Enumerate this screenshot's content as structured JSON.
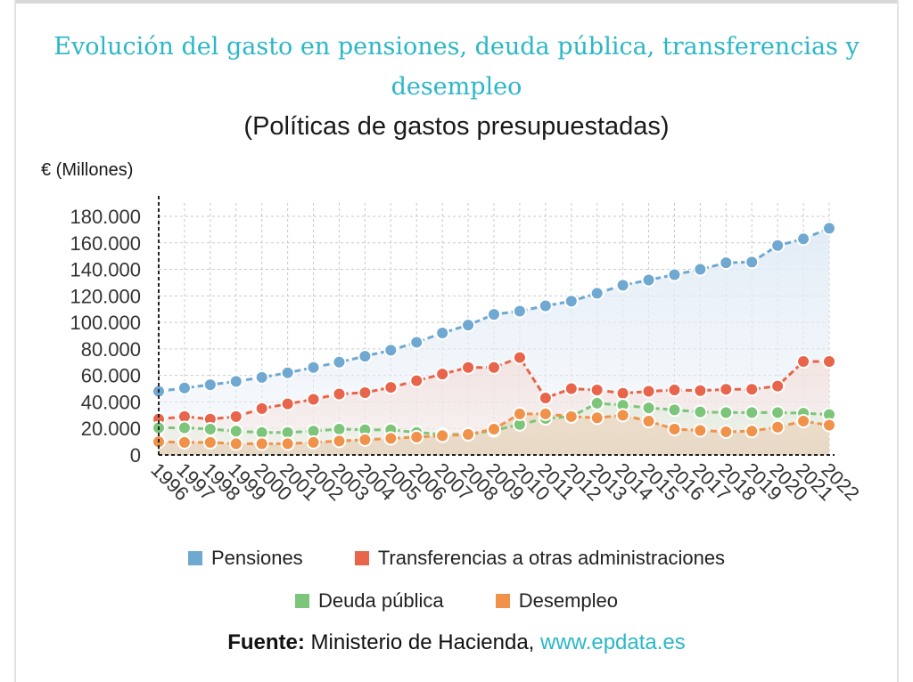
{
  "title": "Evolución del gasto en pensiones, deuda pública, transferencias y desempleo",
  "subtitle": "(Políticas de gastos presupuestadas)",
  "source": {
    "label": "Fuente:",
    "text": " Ministerio de Hacienda, ",
    "link": "www.epdata.es"
  },
  "chart_data": {
    "type": "line",
    "title": "Evolución del gasto en pensiones, deuda pública, transferencias y desempleo",
    "subtitle": "(Políticas de gastos presupuestadas)",
    "ylabel": "€ (Millones)",
    "xlabel": "",
    "ylim": [
      0,
      180000
    ],
    "yticks": [
      0,
      20000,
      40000,
      60000,
      80000,
      100000,
      120000,
      140000,
      160000,
      180000
    ],
    "ytick_labels": [
      "0",
      "20.000",
      "40.000",
      "60.000",
      "80.000",
      "100.000",
      "120.000",
      "140.000",
      "160.000",
      "180.000"
    ],
    "x": [
      "1996",
      "1997",
      "1998",
      "1999",
      "2000",
      "2001",
      "2002",
      "2003",
      "2004",
      "2005",
      "2006",
      "2007",
      "2008",
      "2009",
      "2010",
      "2011",
      "2012",
      "2013",
      "2014",
      "2015",
      "2016",
      "2017",
      "2018",
      "2019",
      "2020",
      "2021",
      "2022"
    ],
    "grid": true,
    "legend_position": "bottom",
    "series": [
      {
        "name": "Pensiones",
        "color": "#6fa8d0",
        "values": [
          48000,
          50500,
          53000,
          55500,
          58500,
          62000,
          66000,
          70000,
          74500,
          79000,
          85000,
          92000,
          98000,
          106000,
          108500,
          112500,
          116000,
          122000,
          128000,
          132000,
          136000,
          140000,
          145000,
          145500,
          158000,
          163000,
          171000
        ]
      },
      {
        "name": "Transferencias a otras administraciones",
        "color": "#e8644a",
        "values": [
          27000,
          29000,
          27000,
          29000,
          35000,
          38500,
          42000,
          46000,
          47000,
          51000,
          56000,
          61000,
          66000,
          66000,
          73500,
          43000,
          50000,
          49000,
          46500,
          48000,
          49000,
          48500,
          49500,
          49500,
          52000,
          70500,
          70500
        ]
      },
      {
        "name": "Deuda pública",
        "color": "#7cc57a",
        "values": [
          20500,
          20500,
          19500,
          18000,
          17000,
          17000,
          18000,
          19500,
          19000,
          19000,
          17000,
          15500,
          15500,
          18500,
          23000,
          27500,
          29000,
          39000,
          37500,
          35500,
          34000,
          32500,
          32000,
          32000,
          32000,
          31500,
          30500
        ]
      },
      {
        "name": "Desempleo",
        "color": "#f0924a",
        "values": [
          10000,
          9500,
          9500,
          8500,
          8500,
          8500,
          9500,
          10500,
          11500,
          12500,
          13500,
          14500,
          15500,
          19500,
          31000,
          31000,
          29000,
          28000,
          30000,
          25500,
          19500,
          18500,
          17500,
          18000,
          21000,
          25500,
          22500
        ]
      }
    ]
  }
}
